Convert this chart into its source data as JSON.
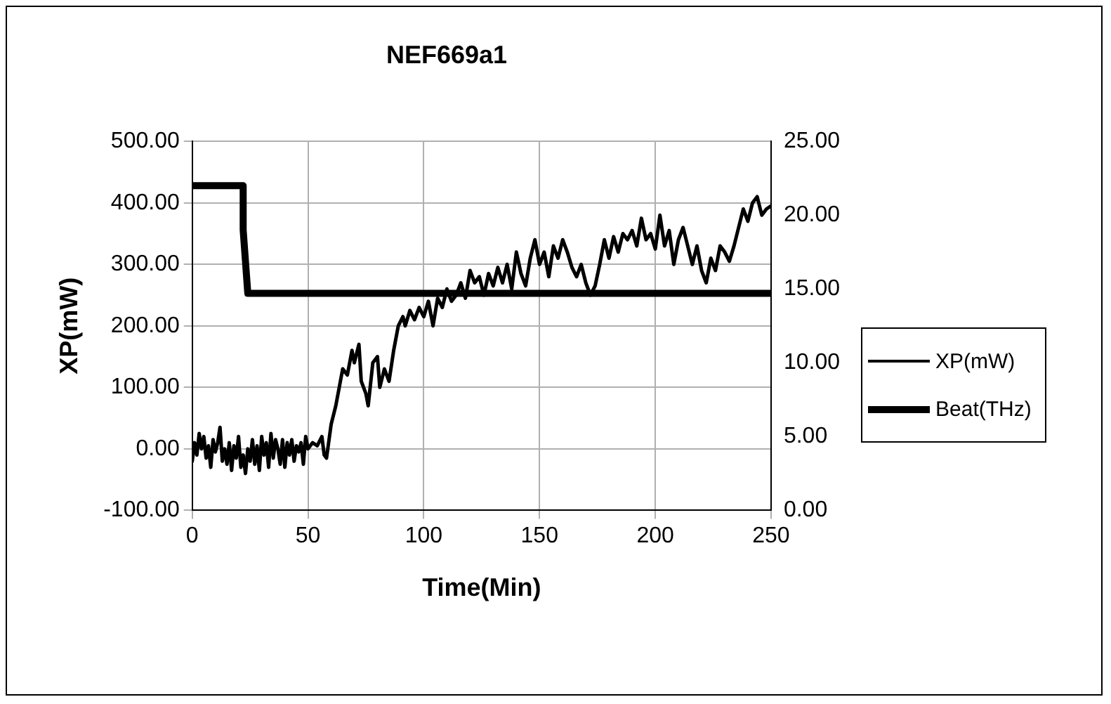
{
  "chart_data": {
    "type": "line",
    "title": "NEF669a1",
    "xlabel": "Time(Min)",
    "ylabel": "XP(mW)",
    "xlim": [
      0,
      250
    ],
    "xticks": [
      0,
      50,
      100,
      150,
      200,
      250
    ],
    "ylim": [
      -100,
      500
    ],
    "yticks": [
      {
        "value": -100,
        "label": "-100.00"
      },
      {
        "value": 0,
        "label": "0.00"
      },
      {
        "value": 100,
        "label": "100.00"
      },
      {
        "value": 200,
        "label": "200.00"
      },
      {
        "value": 300,
        "label": "300.00"
      },
      {
        "value": 400,
        "label": "400.00"
      },
      {
        "value": 500,
        "label": "500.00"
      }
    ],
    "y2lim": [
      0,
      25
    ],
    "y2ticks": [
      {
        "value": 0,
        "label": "0.00"
      },
      {
        "value": 5,
        "label": "5.00"
      },
      {
        "value": 10,
        "label": "10.00"
      },
      {
        "value": 15,
        "label": "15.00"
      },
      {
        "value": 20,
        "label": "20.00"
      },
      {
        "value": 25,
        "label": "25.00"
      }
    ],
    "grid": true,
    "legend": "right",
    "marker": "none",
    "line_style": "solid",
    "series": [
      {
        "name": "XP(mW)",
        "color": "#000000",
        "x": [
          0,
          1,
          2,
          3,
          4,
          5,
          6,
          7,
          8,
          9,
          10,
          11,
          12,
          13,
          14,
          15,
          16,
          17,
          18,
          19,
          20,
          21,
          22,
          23,
          24,
          25,
          26,
          27,
          28,
          29,
          30,
          31,
          32,
          33,
          34,
          35,
          36,
          37,
          38,
          39,
          40,
          41,
          42,
          43,
          44,
          45,
          46,
          47,
          48,
          49,
          50,
          52,
          54,
          56,
          57,
          58,
          60,
          62,
          64,
          65,
          67,
          69,
          70,
          72,
          73,
          75,
          76,
          78,
          80,
          81,
          83,
          85,
          87,
          89,
          91,
          92,
          94,
          96,
          98,
          100,
          102,
          104,
          106,
          108,
          110,
          112,
          114,
          116,
          118,
          120,
          122,
          124,
          126,
          128,
          130,
          132,
          134,
          136,
          138,
          140,
          142,
          144,
          146,
          148,
          150,
          152,
          154,
          156,
          158,
          160,
          162,
          164,
          166,
          168,
          170,
          172,
          174,
          176,
          178,
          180,
          182,
          184,
          186,
          188,
          190,
          192,
          194,
          196,
          198,
          200,
          202,
          204,
          206,
          208,
          210,
          212,
          214,
          216,
          218,
          220,
          222,
          224,
          226,
          228,
          230,
          232,
          234,
          236,
          238,
          240,
          242,
          244,
          246,
          248,
          250
        ],
        "values": [
          -20,
          10,
          -10,
          25,
          0,
          20,
          -15,
          5,
          -30,
          15,
          -5,
          10,
          35,
          -20,
          0,
          -25,
          10,
          -35,
          5,
          -15,
          20,
          -30,
          -10,
          -40,
          0,
          -20,
          15,
          -25,
          5,
          -35,
          20,
          -10,
          10,
          -30,
          25,
          -15,
          15,
          0,
          -25,
          15,
          -30,
          10,
          -10,
          15,
          -20,
          5,
          -5,
          10,
          -25,
          20,
          0,
          10,
          5,
          20,
          -10,
          -15,
          40,
          70,
          110,
          130,
          120,
          160,
          140,
          170,
          110,
          90,
          70,
          140,
          150,
          100,
          130,
          110,
          160,
          200,
          215,
          200,
          225,
          210,
          230,
          215,
          240,
          200,
          245,
          230,
          260,
          240,
          250,
          270,
          245,
          290,
          270,
          280,
          250,
          285,
          265,
          295,
          270,
          300,
          260,
          320,
          285,
          265,
          310,
          340,
          300,
          320,
          280,
          330,
          310,
          340,
          320,
          295,
          280,
          300,
          270,
          250,
          265,
          300,
          340,
          310,
          345,
          320,
          350,
          340,
          355,
          330,
          375,
          340,
          350,
          325,
          380,
          330,
          355,
          300,
          340,
          360,
          330,
          300,
          330,
          290,
          270,
          310,
          290,
          330,
          320,
          305,
          330,
          360,
          390,
          370,
          400,
          410,
          380,
          390,
          395
        ]
      },
      {
        "name": "Beat(THz)",
        "color": "#000000",
        "axis": "y2",
        "x": [
          0,
          22,
          22,
          24,
          250
        ],
        "values": [
          22,
          22,
          19,
          14.7,
          14.7
        ]
      }
    ]
  }
}
